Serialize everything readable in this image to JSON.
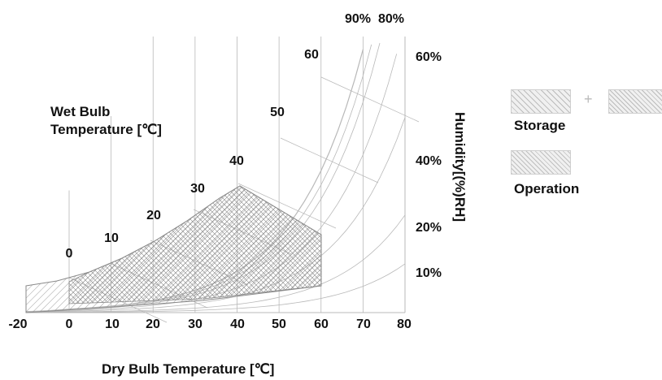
{
  "chart_data": {
    "type": "area",
    "title": "",
    "xlabel": "Dry Bulb Temperature [℃]",
    "ylabel": "Humidity[(%)RH]",
    "wet_bulb_label": [
      "Wet Bulb",
      "Temperature [℃]"
    ],
    "x_ticks": [
      -20,
      0,
      10,
      20,
      30,
      40,
      50,
      60,
      70,
      80
    ],
    "xlim": [
      -20,
      80
    ],
    "wet_bulb_ticks": [
      0,
      10,
      20,
      30,
      40,
      50,
      60
    ],
    "rh_labels": [
      "90%",
      "80%",
      "60%",
      "40%",
      "20%",
      "10%"
    ],
    "rh_curves": [
      10,
      20,
      40,
      60,
      80,
      90,
      100
    ],
    "regions": [
      {
        "name": "Storage",
        "x_range": [
          -20,
          60
        ],
        "max_wet_bulb": 29,
        "rh_range": [
          10,
          90
        ]
      },
      {
        "name": "Operation",
        "x_range": [
          0,
          60
        ],
        "max_wet_bulb": 29,
        "rh_range": [
          20,
          80
        ]
      }
    ]
  },
  "labels": {
    "xlabel": "Dry Bulb Temperature [℃]",
    "ylabel": "Humidity[(%)RH]",
    "wet_bulb_line1": "Wet Bulb",
    "wet_bulb_line2": "Temperature [℃]"
  },
  "legend": {
    "storage": "Storage",
    "operation": "Operation",
    "plus": "+"
  },
  "colors": {
    "hatch": "#8a8a8a",
    "grid": "#b8b8b8",
    "swatch_bg": "#e8e8e8"
  }
}
